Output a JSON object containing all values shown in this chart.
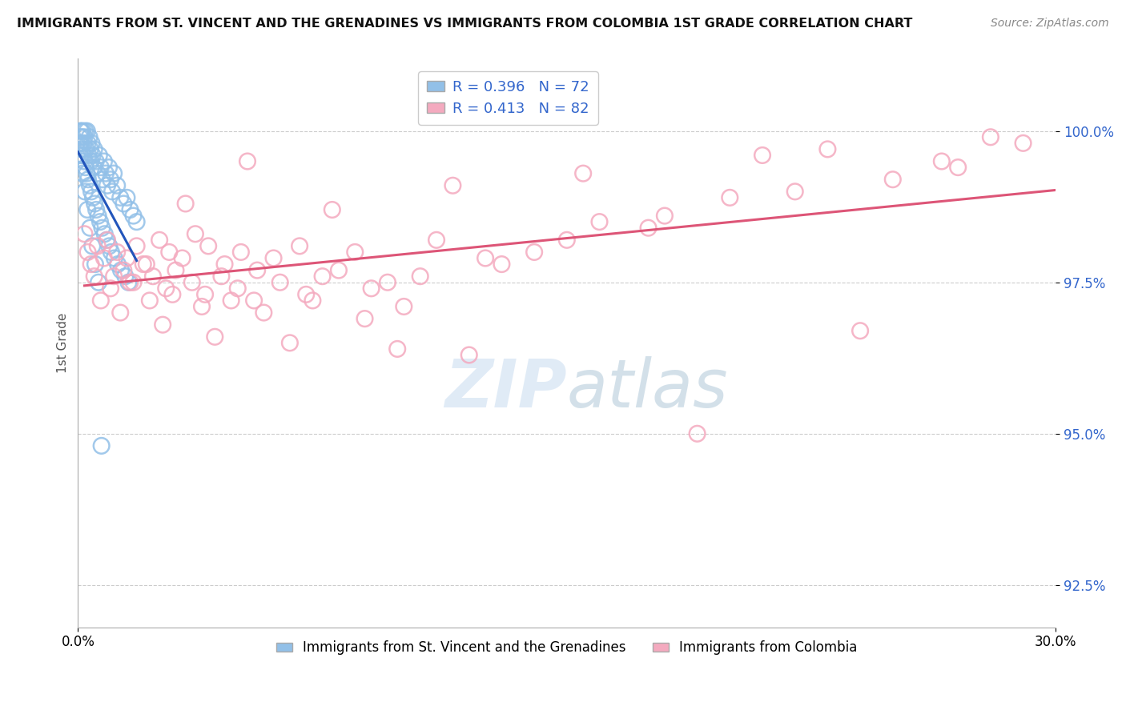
{
  "title": "IMMIGRANTS FROM ST. VINCENT AND THE GRENADINES VS IMMIGRANTS FROM COLOMBIA 1ST GRADE CORRELATION CHART",
  "source": "Source: ZipAtlas.com",
  "ylabel": "1st Grade",
  "xlim": [
    0.0,
    30.0
  ],
  "ylim": [
    91.8,
    101.2
  ],
  "yticks": [
    92.5,
    95.0,
    97.5,
    100.0
  ],
  "xticks": [
    0.0,
    30.0
  ],
  "xtick_labels": [
    "0.0%",
    "30.0%"
  ],
  "ytick_labels": [
    "92.5%",
    "95.0%",
    "97.5%",
    "100.0%"
  ],
  "blue_color": "#92C0E8",
  "pink_color": "#F4AABF",
  "blue_line_color": "#2255BB",
  "pink_line_color": "#DD5577",
  "legend_blue_label": "R = 0.396   N = 72",
  "legend_pink_label": "R = 0.413   N = 82",
  "legend_label_blue": "Immigrants from St. Vincent and the Grenadines",
  "legend_label_pink": "Immigrants from Colombia",
  "blue_R": 0.396,
  "blue_N": 72,
  "pink_R": 0.413,
  "pink_N": 82,
  "blue_x": [
    0.05,
    0.08,
    0.1,
    0.12,
    0.15,
    0.18,
    0.2,
    0.22,
    0.25,
    0.28,
    0.3,
    0.32,
    0.35,
    0.38,
    0.4,
    0.42,
    0.45,
    0.48,
    0.5,
    0.55,
    0.6,
    0.65,
    0.7,
    0.75,
    0.8,
    0.85,
    0.9,
    0.95,
    1.0,
    1.05,
    1.1,
    1.2,
    1.3,
    1.4,
    1.5,
    1.6,
    1.7,
    1.8,
    0.06,
    0.09,
    0.13,
    0.16,
    0.19,
    0.23,
    0.27,
    0.31,
    0.36,
    0.41,
    0.46,
    0.51,
    0.56,
    0.62,
    0.68,
    0.74,
    0.82,
    0.88,
    0.96,
    1.02,
    1.12,
    1.22,
    1.32,
    1.45,
    1.55,
    0.07,
    0.14,
    0.21,
    0.29,
    0.37,
    0.44,
    0.53,
    0.63,
    0.72
  ],
  "blue_y": [
    99.8,
    100.0,
    100.0,
    99.9,
    100.0,
    99.8,
    99.9,
    100.0,
    99.7,
    100.0,
    99.8,
    99.6,
    99.9,
    99.7,
    99.5,
    99.8,
    99.6,
    99.4,
    99.7,
    99.5,
    99.3,
    99.6,
    99.4,
    99.2,
    99.5,
    99.3,
    99.1,
    99.4,
    99.2,
    99.0,
    99.3,
    99.1,
    98.9,
    98.8,
    98.9,
    98.7,
    98.6,
    98.5,
    99.9,
    99.8,
    99.7,
    99.6,
    99.5,
    99.4,
    99.3,
    99.2,
    99.1,
    99.0,
    98.9,
    98.8,
    98.7,
    98.6,
    98.5,
    98.4,
    98.3,
    98.2,
    98.1,
    98.0,
    97.9,
    97.8,
    97.7,
    97.6,
    97.5,
    99.6,
    99.3,
    99.0,
    98.7,
    98.4,
    98.1,
    97.8,
    97.5,
    94.8
  ],
  "pink_x": [
    0.3,
    0.6,
    0.9,
    1.2,
    1.5,
    1.8,
    2.1,
    2.5,
    2.8,
    3.2,
    3.6,
    4.0,
    4.5,
    5.0,
    5.5,
    6.0,
    6.8,
    7.5,
    8.5,
    9.5,
    11.0,
    13.0,
    16.0,
    20.0,
    25.0,
    29.0,
    0.4,
    0.8,
    1.1,
    1.4,
    1.7,
    2.0,
    2.3,
    2.7,
    3.0,
    3.5,
    3.9,
    4.4,
    4.9,
    5.4,
    6.2,
    7.0,
    8.0,
    9.0,
    10.5,
    12.5,
    15.0,
    18.0,
    22.0,
    27.0,
    0.5,
    1.0,
    1.6,
    2.2,
    2.9,
    3.8,
    4.7,
    5.7,
    7.2,
    8.8,
    10.0,
    14.0,
    17.5,
    0.7,
    1.3,
    2.6,
    4.2,
    6.5,
    9.8,
    12.0,
    19.0,
    24.0,
    0.2,
    3.3,
    5.2,
    7.8,
    11.5,
    28.0,
    21.0,
    15.5,
    23.0,
    26.5
  ],
  "pink_y": [
    98.0,
    98.1,
    98.2,
    98.0,
    97.9,
    98.1,
    97.8,
    98.2,
    98.0,
    97.9,
    98.3,
    98.1,
    97.8,
    98.0,
    97.7,
    97.9,
    98.1,
    97.6,
    98.0,
    97.5,
    98.2,
    97.8,
    98.5,
    98.9,
    99.2,
    99.8,
    97.8,
    97.9,
    97.6,
    97.7,
    97.5,
    97.8,
    97.6,
    97.4,
    97.7,
    97.5,
    97.3,
    97.6,
    97.4,
    97.2,
    97.5,
    97.3,
    97.7,
    97.4,
    97.6,
    97.9,
    98.2,
    98.6,
    99.0,
    99.4,
    97.6,
    97.4,
    97.5,
    97.2,
    97.3,
    97.1,
    97.2,
    97.0,
    97.2,
    96.9,
    97.1,
    98.0,
    98.4,
    97.2,
    97.0,
    96.8,
    96.6,
    96.5,
    96.4,
    96.3,
    95.0,
    96.7,
    98.3,
    98.8,
    99.5,
    98.7,
    99.1,
    99.9,
    99.6,
    99.3,
    99.7,
    99.5
  ]
}
